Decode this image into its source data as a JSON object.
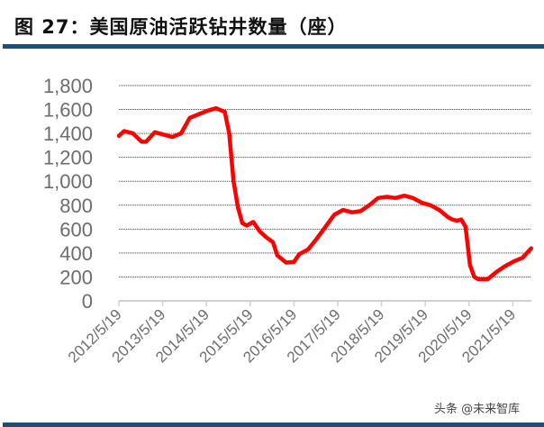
{
  "header": {
    "title": "图 27：美国原油活跃钻井数量（座）"
  },
  "watermark": "头条 @未来智库",
  "colors": {
    "line": "#ff0000",
    "rule": "#1b4f7a",
    "tick_text": "#6d6d6d",
    "grid": "#555555"
  },
  "chart_data": {
    "type": "line",
    "title": "美国原油活跃钻井数量（座）",
    "xlabel": "",
    "ylabel": "",
    "ylim": [
      0,
      1800
    ],
    "grid": true,
    "legend": null,
    "y_ticks": [
      "0",
      "200",
      "400",
      "600",
      "800",
      "1,000",
      "1,200",
      "1,400",
      "1,600",
      "1,800"
    ],
    "x_ticks": [
      "2012/5/19",
      "2013/5/19",
      "2014/5/19",
      "2015/5/19",
      "2016/5/19",
      "2017/5/19",
      "2018/5/19",
      "2019/5/19",
      "2020/5/19",
      "2021/5/19"
    ],
    "series": [
      {
        "name": "美国原油活跃钻井数量",
        "x": [
          2012.38,
          2012.5,
          2012.7,
          2012.9,
          2013.0,
          2013.2,
          2013.4,
          2013.6,
          2013.8,
          2014.0,
          2014.2,
          2014.4,
          2014.6,
          2014.8,
          2014.9,
          2015.0,
          2015.1,
          2015.2,
          2015.3,
          2015.45,
          2015.6,
          2015.75,
          2015.9,
          2016.0,
          2016.2,
          2016.38,
          2016.5,
          2016.7,
          2016.9,
          2017.1,
          2017.3,
          2017.5,
          2017.7,
          2017.9,
          2018.1,
          2018.3,
          2018.5,
          2018.7,
          2018.9,
          2019.1,
          2019.3,
          2019.5,
          2019.7,
          2019.9,
          2020.0,
          2020.1,
          2020.2,
          2020.3,
          2020.4,
          2020.5,
          2020.6,
          2020.8,
          2021.0,
          2021.2,
          2021.4,
          2021.6,
          2021.8
        ],
        "values": [
          1380,
          1420,
          1400,
          1330,
          1330,
          1410,
          1390,
          1370,
          1400,
          1530,
          1560,
          1590,
          1610,
          1580,
          1400,
          1000,
          780,
          650,
          630,
          660,
          580,
          530,
          490,
          380,
          320,
          325,
          390,
          430,
          520,
          620,
          720,
          760,
          740,
          750,
          800,
          860,
          870,
          860,
          880,
          860,
          820,
          800,
          760,
          700,
          680,
          670,
          680,
          620,
          300,
          200,
          180,
          180,
          240,
          290,
          330,
          360,
          440
        ]
      }
    ]
  }
}
